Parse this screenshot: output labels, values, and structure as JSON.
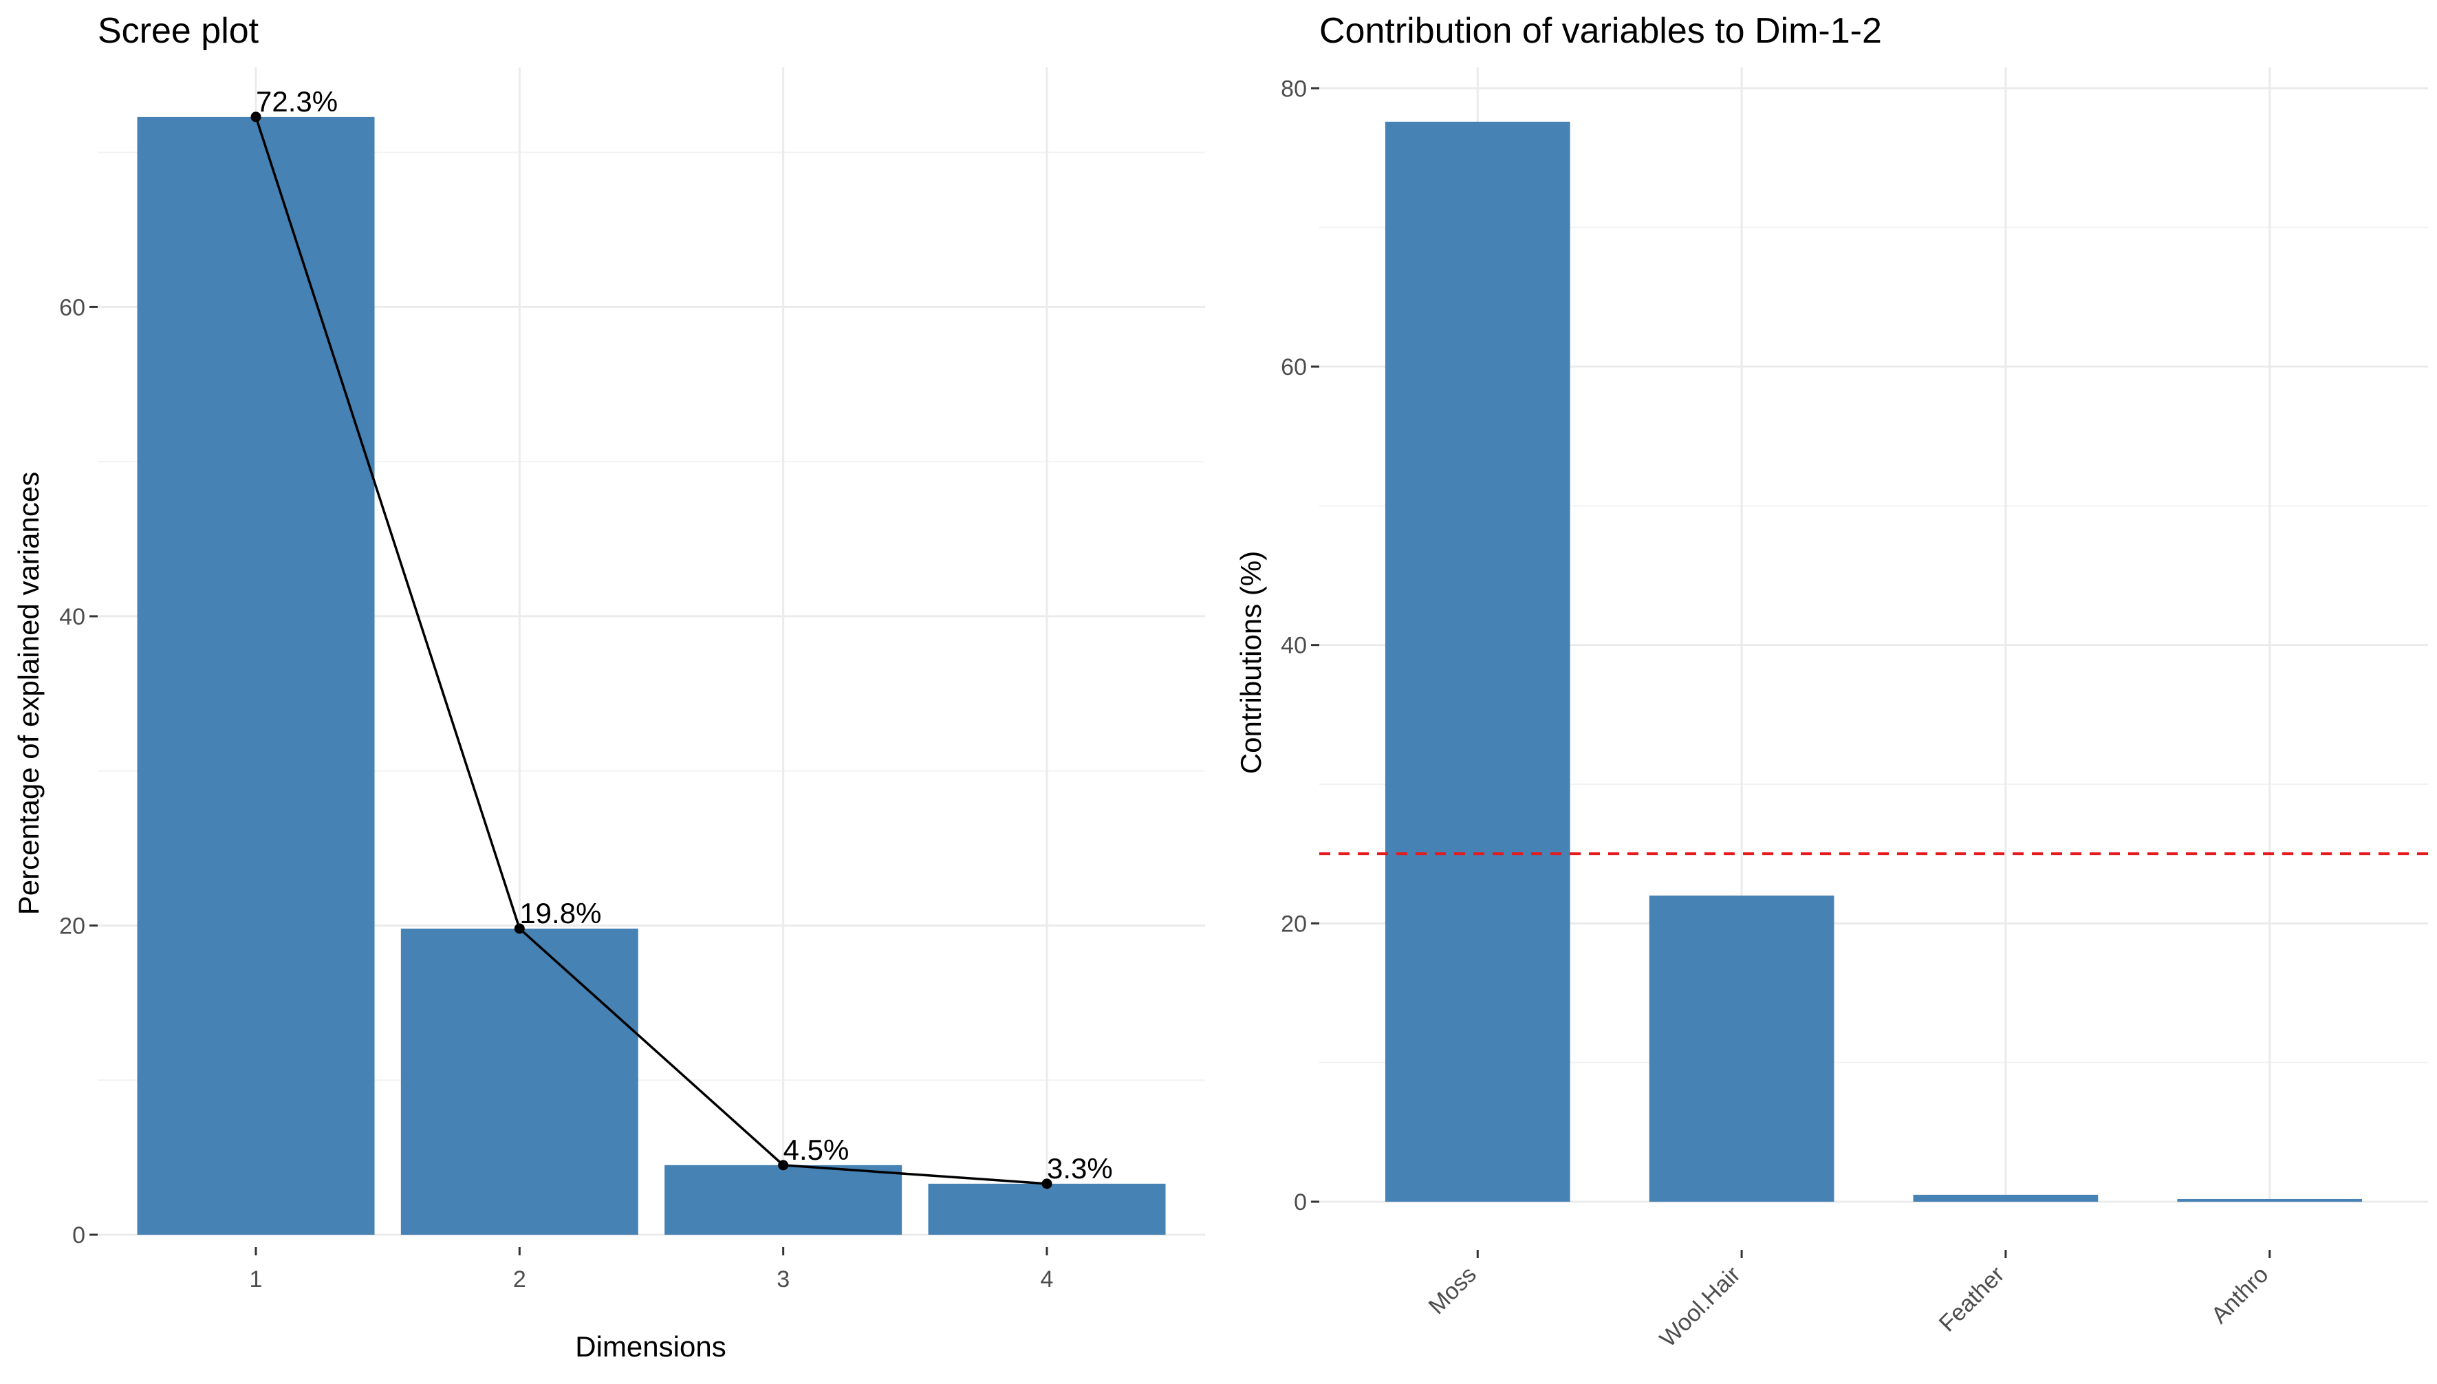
{
  "chart_data": [
    {
      "type": "bar",
      "title": "Scree plot",
      "xlabel": "Dimensions",
      "ylabel": "Percentage of explained variances",
      "categories": [
        "1",
        "2",
        "3",
        "4"
      ],
      "values": [
        72.3,
        19.8,
        4.5,
        3.3
      ],
      "value_labels": [
        "72.3%",
        "19.8%",
        "4.5%",
        "3.3%"
      ],
      "overlay_line": true,
      "ylim": [
        0,
        75.5
      ],
      "yticks": [
        0,
        20,
        40,
        60
      ],
      "ytick_labels": [
        "0",
        "20",
        "40",
        "60"
      ],
      "grid": true,
      "bar_color": "#4682B4",
      "line_color": "#000000"
    },
    {
      "type": "bar",
      "title": "Contribution of variables to Dim-1-2",
      "xlabel": "",
      "ylabel": "Contributions (%)",
      "categories": [
        "Moss",
        "Wool.Hair",
        "Feather",
        "Anthro"
      ],
      "values": [
        77.6,
        22.0,
        0.5,
        0.2
      ],
      "reference_line": 25,
      "reference_line_color": "#E41A1C",
      "ylim": [
        0,
        81.5
      ],
      "yticks": [
        0,
        20,
        40,
        60,
        80
      ],
      "ytick_labels": [
        "0",
        "20",
        "40",
        "60",
        "80"
      ],
      "xtick_rotation": 45,
      "grid": true,
      "bar_color": "#4682B4"
    }
  ]
}
